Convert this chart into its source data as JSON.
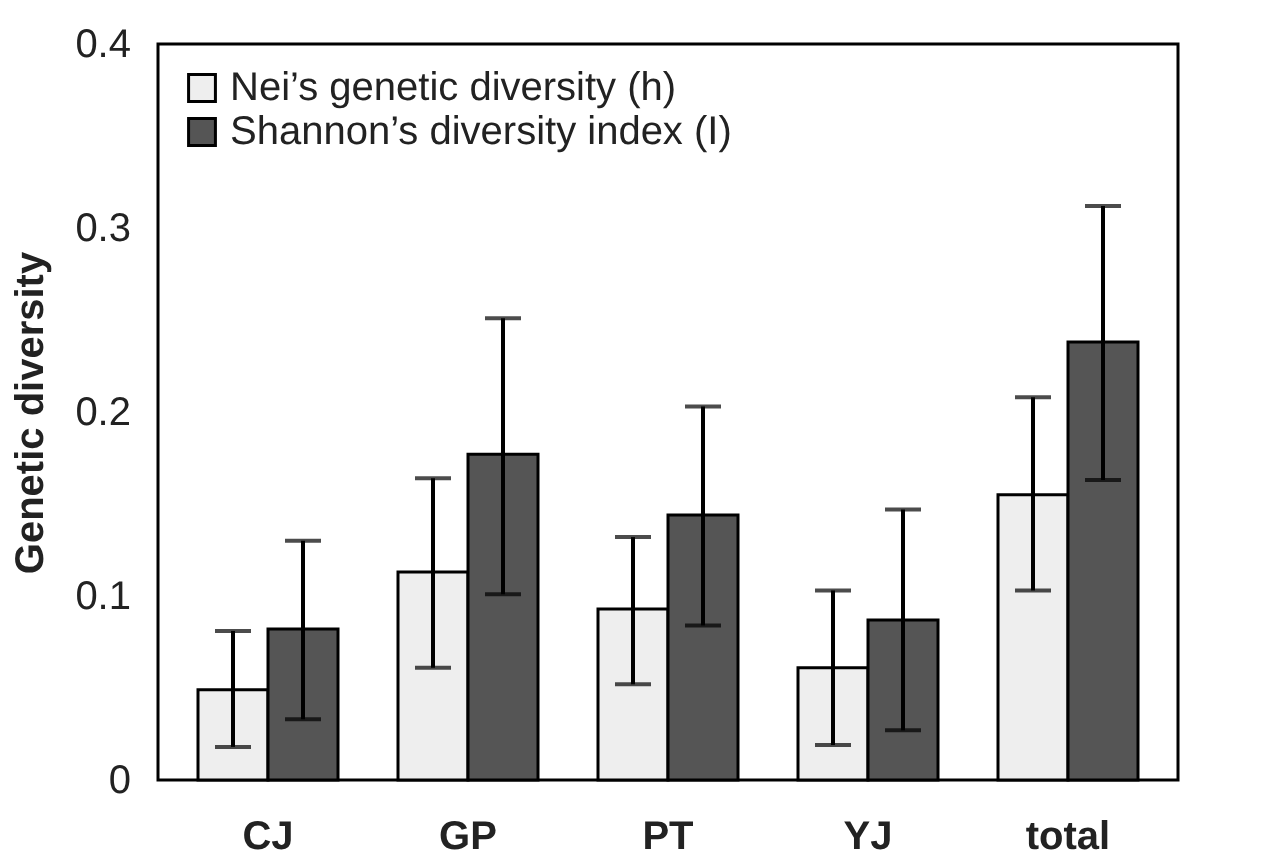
{
  "chart_data": {
    "type": "bar",
    "ylabel": "Genetic diversity",
    "categories": [
      "CJ",
      "GP",
      "PT",
      "YJ",
      "total"
    ],
    "series": [
      {
        "name": "Nei’s genetic diversity (h)",
        "color": "#eeeeee",
        "values": [
          0.049,
          0.113,
          0.093,
          0.061,
          0.155
        ],
        "errors": [
          [
            0.018,
            0.081
          ],
          [
            0.061,
            0.164
          ],
          [
            0.052,
            0.132
          ],
          [
            0.019,
            0.103
          ],
          [
            0.103,
            0.208
          ]
        ]
      },
      {
        "name": "Shannon’s diversity index (I)",
        "color": "#555555",
        "values": [
          0.082,
          0.177,
          0.144,
          0.087,
          0.238
        ],
        "errors": [
          [
            0.033,
            0.13
          ],
          [
            0.101,
            0.251
          ],
          [
            0.084,
            0.203
          ],
          [
            0.027,
            0.147
          ],
          [
            0.163,
            0.312
          ]
        ]
      }
    ],
    "ylim": [
      0,
      0.4
    ],
    "yticks": [
      0,
      0.1,
      0.2,
      0.3,
      0.4
    ],
    "grid": false,
    "legend": "top left"
  }
}
